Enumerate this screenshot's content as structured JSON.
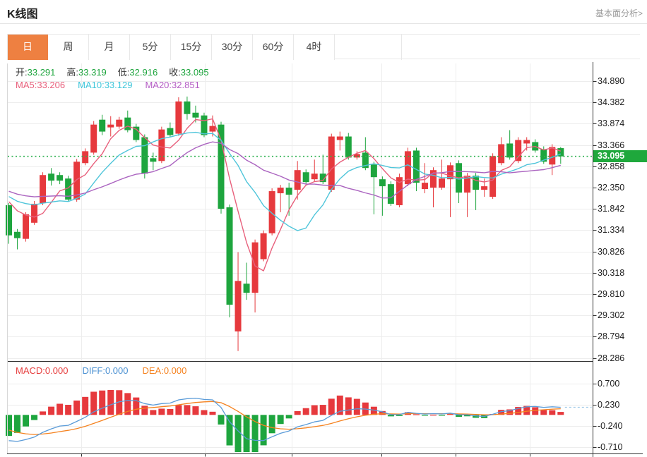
{
  "header": {
    "title": "K线图",
    "link_label": "基本面分析>"
  },
  "tabs": [
    {
      "key": "day",
      "label": "日",
      "active": true
    },
    {
      "key": "week",
      "label": "周",
      "active": false
    },
    {
      "key": "month",
      "label": "月",
      "active": false
    },
    {
      "key": "5min",
      "label": "5分",
      "active": false
    },
    {
      "key": "15min",
      "label": "15分",
      "active": false
    },
    {
      "key": "30min",
      "label": "30分",
      "active": false
    },
    {
      "key": "60min",
      "label": "60分",
      "active": false
    },
    {
      "key": "4hour",
      "label": "4时",
      "active": false
    }
  ],
  "ohlc": {
    "items": [
      {
        "key": "open",
        "label": "开:",
        "value": "33.291"
      },
      {
        "key": "high",
        "label": "高:",
        "value": "33.319"
      },
      {
        "key": "low",
        "label": "低:",
        "value": "32.916"
      },
      {
        "key": "close",
        "label": "收:",
        "value": "33.095"
      }
    ]
  },
  "ma": {
    "items": [
      {
        "key": "ma5",
        "label": "MA5: ",
        "value": "33.206",
        "color": "#e8607c"
      },
      {
        "key": "ma10",
        "label": "MA10: ",
        "value": "33.129",
        "color": "#3fc6da"
      },
      {
        "key": "ma20",
        "label": "MA20: ",
        "value": "32.851",
        "color": "#b45cc4"
      }
    ]
  },
  "macd_header": {
    "items": [
      {
        "key": "macd",
        "label": "MACD:",
        "value": "0.000",
        "color": "#e63c3c"
      },
      {
        "key": "diff",
        "label": "DIFF:",
        "value": "0.000",
        "color": "#4a90d2"
      },
      {
        "key": "dea",
        "label": "DEA:",
        "value": "0.000",
        "color": "#f5821f"
      }
    ]
  },
  "chart_data": {
    "type": "candlestick",
    "title": "K线图 (日)",
    "legend": [
      "MA5",
      "MA10",
      "MA20"
    ],
    "y_ticks": [
      "34.890",
      "34.382",
      "33.874",
      "33.366",
      "32.858",
      "32.350",
      "31.842",
      "31.334",
      "30.826",
      "30.318",
      "29.810",
      "29.302",
      "28.794",
      "28.286"
    ],
    "ylim": [
      28.286,
      34.89
    ],
    "last_price": "33.095",
    "grid": true,
    "legend_position": "top-left",
    "candles_ohlc": [
      [
        31.93,
        31.98,
        31.011,
        31.211
      ],
      [
        31.295,
        31.362,
        30.877,
        31.144
      ],
      [
        31.128,
        31.763,
        31.061,
        31.713
      ],
      [
        31.512,
        32.031,
        31.462,
        31.964
      ],
      [
        31.98,
        32.716,
        31.93,
        32.649
      ],
      [
        32.683,
        32.816,
        32.399,
        32.516
      ],
      [
        32.649,
        32.716,
        32.432,
        32.516
      ],
      [
        32.566,
        32.633,
        32.014,
        32.064
      ],
      [
        32.064,
        33.034,
        32.014,
        32.967
      ],
      [
        32.934,
        33.285,
        32.883,
        33.218
      ],
      [
        33.184,
        33.937,
        33.134,
        33.853
      ],
      [
        33.97,
        34.087,
        33.602,
        33.686
      ],
      [
        33.786,
        34.054,
        33.569,
        33.853
      ],
      [
        33.803,
        34.037,
        33.753,
        33.97
      ],
      [
        34.021,
        34.188,
        33.669,
        33.72
      ],
      [
        33.803,
        33.87,
        33.435,
        33.485
      ],
      [
        33.552,
        33.619,
        32.566,
        32.683
      ],
      [
        33.051,
        33.184,
        32.766,
        32.967
      ],
      [
        32.984,
        33.803,
        32.934,
        33.736
      ],
      [
        33.77,
        33.904,
        33.552,
        33.602
      ],
      [
        33.636,
        34.505,
        33.586,
        34.405
      ],
      [
        34.405,
        34.522,
        33.97,
        34.104
      ],
      [
        34.137,
        34.305,
        33.904,
        34.021
      ],
      [
        34.071,
        34.137,
        33.552,
        33.602
      ],
      [
        33.686,
        34.071,
        33.569,
        33.82
      ],
      [
        33.853,
        33.92,
        31.729,
        31.846
      ],
      [
        31.88,
        31.947,
        29.255,
        29.556
      ],
      [
        28.92,
        30.81,
        28.452,
        30.124
      ],
      [
        30.058,
        30.559,
        29.673,
        29.84
      ],
      [
        29.84,
        31.111,
        29.372,
        31.044
      ],
      [
        30.643,
        31.328,
        30.592,
        31.261
      ],
      [
        31.261,
        32.332,
        31.211,
        32.265
      ],
      [
        32.215,
        32.415,
        31.763,
        32.349
      ],
      [
        32.349,
        32.466,
        31.679,
        32.181
      ],
      [
        32.298,
        32.984,
        32.064,
        32.767
      ],
      [
        32.716,
        32.783,
        32.432,
        32.482
      ],
      [
        32.549,
        33.017,
        32.499,
        32.683
      ],
      [
        32.683,
        33.134,
        32.432,
        32.482
      ],
      [
        32.298,
        33.636,
        32.248,
        33.569
      ],
      [
        33.485,
        33.686,
        33.234,
        33.569
      ],
      [
        33.569,
        33.653,
        33.017,
        33.067
      ],
      [
        33.067,
        33.218,
        33.017,
        33.151
      ],
      [
        33.184,
        33.552,
        32.766,
        32.817
      ],
      [
        32.9,
        32.967,
        31.713,
        32.599
      ],
      [
        32.549,
        32.616,
        31.679,
        32.382
      ],
      [
        32.432,
        32.499,
        31.913,
        31.964
      ],
      [
        31.93,
        32.683,
        31.88,
        32.599
      ],
      [
        32.432,
        33.301,
        32.382,
        33.218
      ],
      [
        33.234,
        33.301,
        32.265,
        32.466
      ],
      [
        32.315,
        32.934,
        32.215,
        32.466
      ],
      [
        32.349,
        32.834,
        31.88,
        32.767
      ],
      [
        32.349,
        33.017,
        32.298,
        32.566
      ],
      [
        32.549,
        32.95,
        31.646,
        32.883
      ],
      [
        32.934,
        33.0,
        31.98,
        32.231
      ],
      [
        32.231,
        32.7,
        31.646,
        32.633
      ],
      [
        32.633,
        32.7,
        31.813,
        32.298
      ],
      [
        32.298,
        32.566,
        32.131,
        32.382
      ],
      [
        32.131,
        33.168,
        32.081,
        33.101
      ],
      [
        32.934,
        33.552,
        32.883,
        33.385
      ],
      [
        33.402,
        33.72,
        33.017,
        33.067
      ],
      [
        32.984,
        33.552,
        32.934,
        33.485
      ],
      [
        33.402,
        33.552,
        33.234,
        33.485
      ],
      [
        33.435,
        33.502,
        33.184,
        33.234
      ],
      [
        33.268,
        33.335,
        32.917,
        32.967
      ],
      [
        32.9,
        33.385,
        32.649,
        33.318
      ],
      [
        33.291,
        33.319,
        32.916,
        33.095
      ]
    ],
    "macd": {
      "y_ticks": [
        "0.700",
        "0.230",
        "-0.240",
        "-0.710"
      ],
      "ylim": [
        -0.94,
        0.94
      ],
      "derived_from": "EMA12/EMA26 of closes, DEA=EMA9 of DIFF, bar=2*(DIFF-DEA)"
    },
    "colors": {
      "up": "#e6393d",
      "down": "#1ea53e",
      "ma5": "#e8607c",
      "ma10": "#4fc5da",
      "ma20": "#ab64c0",
      "diff_line": "#5a9bd8",
      "dea_line": "#f5821f",
      "price_line": "#2db14f",
      "price_tag_bg": "#1fa83c",
      "tab_active": "#ee8041",
      "grid": "#ededed",
      "axis": "#333333"
    }
  }
}
